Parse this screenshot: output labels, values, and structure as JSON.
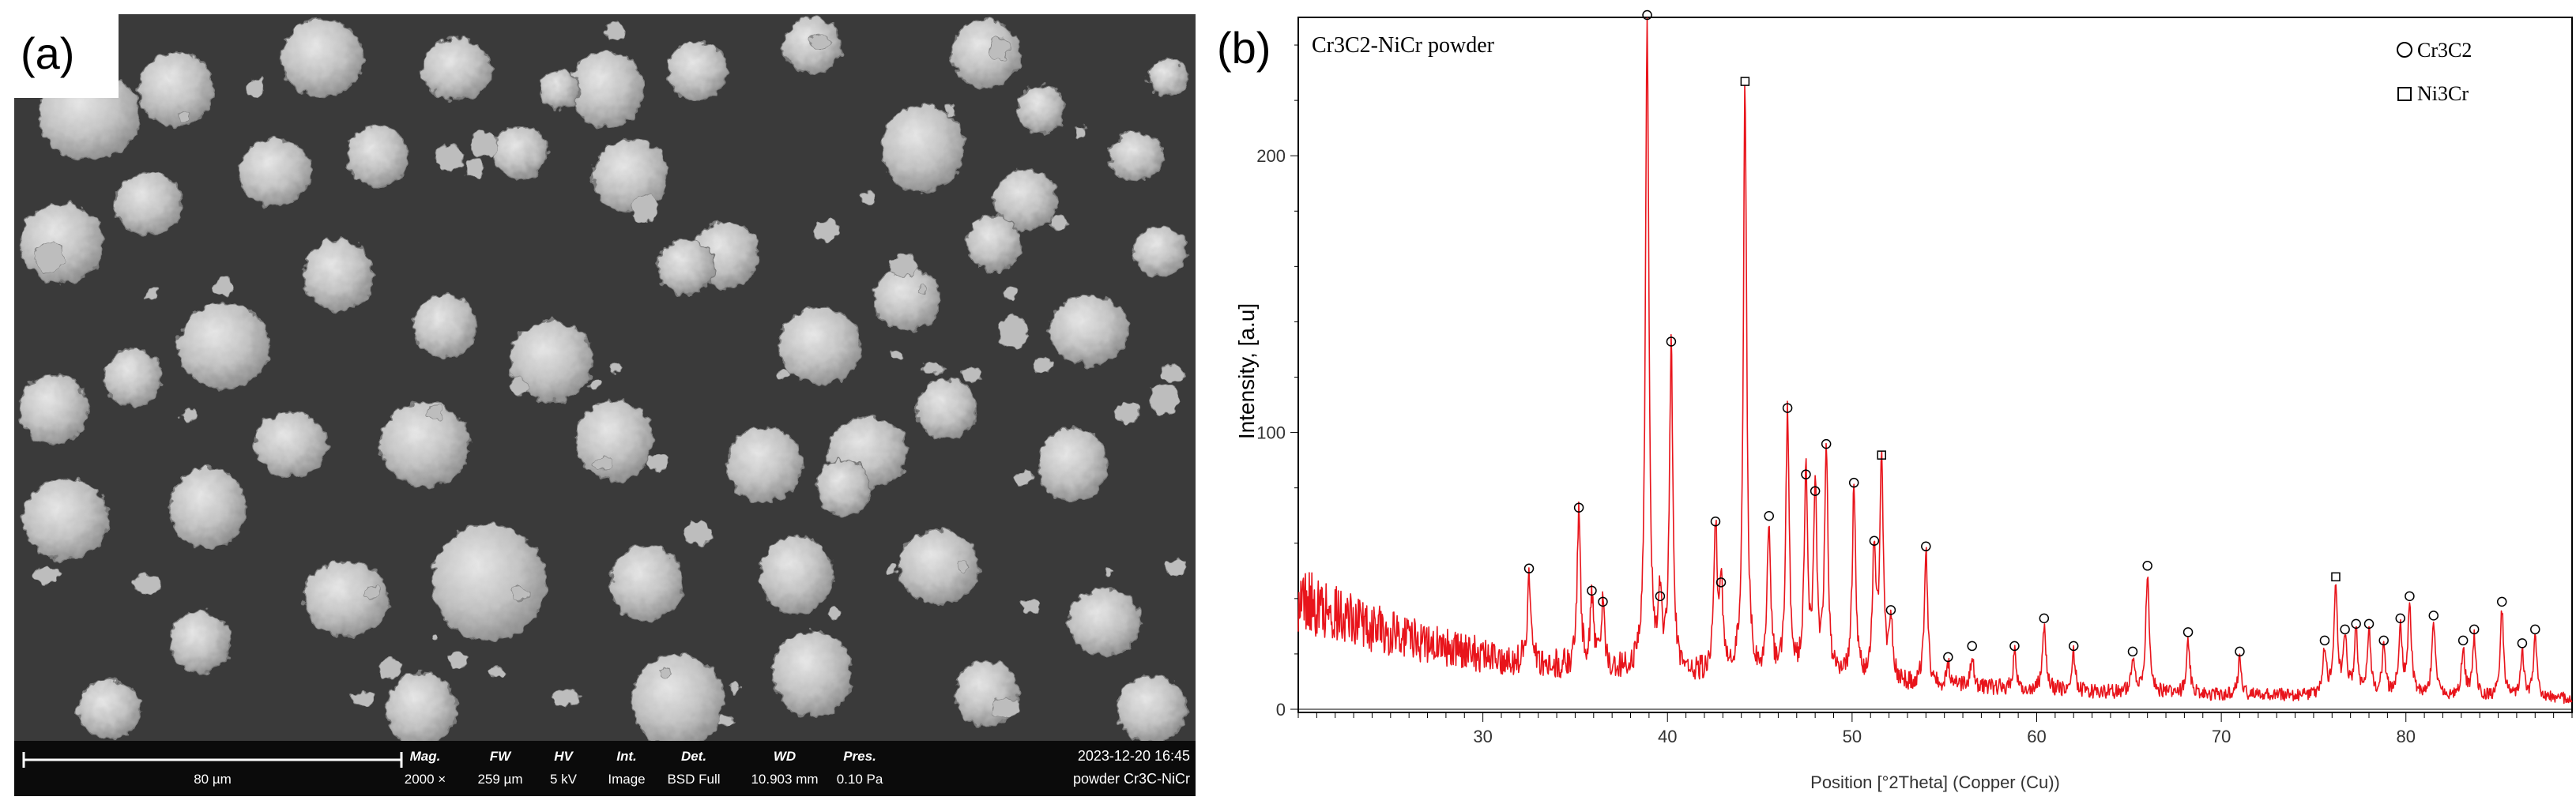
{
  "figure": {
    "panel_a_label": "(a)",
    "panel_b_label": "(b)"
  },
  "sem": {
    "scale_bar_label": "80 µm",
    "fields": [
      {
        "name": "Mag.",
        "value": "2000 ×"
      },
      {
        "name": "FW",
        "value": "259 µm"
      },
      {
        "name": "HV",
        "value": "5 kV"
      },
      {
        "name": "Int.",
        "value": "Image"
      },
      {
        "name": "Det.",
        "value": "BSD Full"
      },
      {
        "name": "WD",
        "value": "10.903 mm"
      },
      {
        "name": "Pres.",
        "value": "0.10 Pa"
      }
    ],
    "timestamp": "2023-12-20 16:45",
    "sample": "powder Cr3C-NiCr",
    "colors": {
      "background": "#3a3a3a",
      "particle": "#c6c6c6",
      "bar": "#0b0b0b"
    }
  },
  "chart_data": {
    "type": "line",
    "title": "Cr3C2-NiCr powder",
    "xlabel": "Position [°2Theta] (Copper (Cu))",
    "ylabel": "Intensity, [a.u]",
    "xlim": [
      20,
      89
    ],
    "ylim": [
      0,
      250
    ],
    "xticks": [
      30,
      40,
      50,
      60,
      70,
      80
    ],
    "yticks": [
      0,
      100,
      200
    ],
    "grid": false,
    "legend_position": "top-right",
    "legend": [
      {
        "marker": "circle",
        "label": "Cr3C2"
      },
      {
        "marker": "square",
        "label": "Ni3Cr"
      }
    ],
    "line_color": "#e8141b",
    "background_shape": [
      [
        20,
        40
      ],
      [
        24,
        30
      ],
      [
        28,
        22
      ],
      [
        32,
        17
      ],
      [
        36,
        14
      ],
      [
        40,
        13
      ],
      [
        45,
        11
      ],
      [
        50,
        10
      ],
      [
        55,
        8
      ],
      [
        60,
        7
      ],
      [
        65,
        6
      ],
      [
        70,
        5
      ],
      [
        75,
        5
      ],
      [
        80,
        5
      ],
      [
        85,
        4
      ],
      [
        89,
        4
      ]
    ],
    "peaks": [
      {
        "x": 32.5,
        "y": 48,
        "phase": "Cr3C2"
      },
      {
        "x": 35.2,
        "y": 70,
        "phase": "Cr3C2"
      },
      {
        "x": 35.9,
        "y": 40,
        "phase": "Cr3C2"
      },
      {
        "x": 36.5,
        "y": 36,
        "phase": "Cr3C2"
      },
      {
        "x": 38.9,
        "y": 248,
        "phase": "Cr3C2"
      },
      {
        "x": 39.6,
        "y": 38,
        "phase": "Cr3C2"
      },
      {
        "x": 40.2,
        "y": 130,
        "phase": "Cr3C2"
      },
      {
        "x": 42.6,
        "y": 65,
        "phase": "Cr3C2"
      },
      {
        "x": 42.9,
        "y": 43,
        "phase": "Cr3C2"
      },
      {
        "x": 44.2,
        "y": 224,
        "phase": "Ni3Cr"
      },
      {
        "x": 45.5,
        "y": 67,
        "phase": "Cr3C2"
      },
      {
        "x": 46.5,
        "y": 106,
        "phase": "Cr3C2"
      },
      {
        "x": 47.5,
        "y": 82,
        "phase": "Cr3C2"
      },
      {
        "x": 48.0,
        "y": 76,
        "phase": "Cr3C2"
      },
      {
        "x": 48.6,
        "y": 93,
        "phase": "Cr3C2"
      },
      {
        "x": 50.1,
        "y": 79,
        "phase": "Cr3C2"
      },
      {
        "x": 51.2,
        "y": 58,
        "phase": "Cr3C2"
      },
      {
        "x": 51.6,
        "y": 89,
        "phase": "Ni3Cr"
      },
      {
        "x": 52.1,
        "y": 33,
        "phase": "Cr3C2"
      },
      {
        "x": 54.0,
        "y": 56,
        "phase": "Cr3C2"
      },
      {
        "x": 55.2,
        "y": 16,
        "phase": "Cr3C2"
      },
      {
        "x": 56.5,
        "y": 20,
        "phase": "Cr3C2"
      },
      {
        "x": 58.8,
        "y": 20,
        "phase": "Cr3C2"
      },
      {
        "x": 60.4,
        "y": 30,
        "phase": "Cr3C2"
      },
      {
        "x": 62.0,
        "y": 20,
        "phase": "Cr3C2"
      },
      {
        "x": 65.2,
        "y": 18,
        "phase": "Cr3C2"
      },
      {
        "x": 66.0,
        "y": 49,
        "phase": "Cr3C2"
      },
      {
        "x": 68.2,
        "y": 25,
        "phase": "Cr3C2"
      },
      {
        "x": 71.0,
        "y": 18,
        "phase": "Cr3C2"
      },
      {
        "x": 75.6,
        "y": 22,
        "phase": "Cr3C2"
      },
      {
        "x": 76.2,
        "y": 45,
        "phase": "Ni3Cr"
      },
      {
        "x": 76.7,
        "y": 26,
        "phase": "Cr3C2"
      },
      {
        "x": 77.3,
        "y": 28,
        "phase": "Cr3C2"
      },
      {
        "x": 78.0,
        "y": 28,
        "phase": "Cr3C2"
      },
      {
        "x": 78.8,
        "y": 22,
        "phase": "Cr3C2"
      },
      {
        "x": 79.7,
        "y": 30,
        "phase": "Cr3C2"
      },
      {
        "x": 80.2,
        "y": 38,
        "phase": "Cr3C2"
      },
      {
        "x": 81.5,
        "y": 31,
        "phase": "Cr3C2"
      },
      {
        "x": 83.1,
        "y": 22,
        "phase": "Cr3C2"
      },
      {
        "x": 83.7,
        "y": 26,
        "phase": "Cr3C2"
      },
      {
        "x": 85.2,
        "y": 36,
        "phase": "Cr3C2"
      },
      {
        "x": 86.3,
        "y": 21,
        "phase": "Cr3C2"
      },
      {
        "x": 87.0,
        "y": 26,
        "phase": "Cr3C2"
      }
    ]
  }
}
